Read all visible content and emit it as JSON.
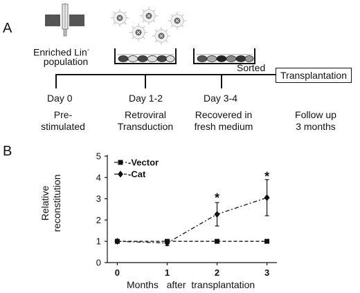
{
  "panel_a": {
    "letter": "A",
    "population_label_main": "Enriched Lin",
    "population_label_sup": "-",
    "population_label_2": "population",
    "sorted_label": "Sorted",
    "transplantation_label": "Transplantation",
    "timeline": [
      {
        "day": "Day 0",
        "desc1": "Pre-",
        "desc2": "stimulated"
      },
      {
        "day": "Day 1-2",
        "desc1": "Retroviral",
        "desc2": "Transduction"
      },
      {
        "day": "Day 3-4",
        "desc1": "Recovered in",
        "desc2": "fresh medium"
      },
      {
        "day": "",
        "desc1": "Follow up",
        "desc2": "3 months"
      }
    ]
  },
  "panel_b": {
    "letter": "B",
    "ylabel_line1": "Relative",
    "ylabel_line2": "reconstitution",
    "xlabel": "Months   after  transplantation"
  },
  "chart_data": {
    "type": "line",
    "x": [
      0,
      1,
      2,
      3
    ],
    "xticks": [
      "0",
      "1",
      "2",
      "3"
    ],
    "yticks": [
      "0",
      "1",
      "2",
      "3",
      "4",
      "5"
    ],
    "ylim": [
      0,
      5
    ],
    "xlabel": "Months   after  transplantation",
    "ylabel": "Relative reconstitution",
    "legend_position": "top-left",
    "series": [
      {
        "name": "Vector",
        "values": [
          1.0,
          1.0,
          1.0,
          1.0
        ],
        "errors": [
          0,
          0.03,
          0,
          0
        ],
        "marker": "square",
        "dash": "dashed",
        "color": "#111111"
      },
      {
        "name": "Cat",
        "values": [
          1.0,
          0.92,
          2.27,
          3.05
        ],
        "errors": [
          0,
          0.12,
          0.55,
          0.85
        ],
        "marker": "diamond",
        "dash": "dashdot",
        "color": "#111111"
      }
    ],
    "annotations": [
      {
        "x": 2,
        "y": 3.1,
        "text": "*"
      },
      {
        "x": 3,
        "y": 4.1,
        "text": "*"
      }
    ]
  }
}
